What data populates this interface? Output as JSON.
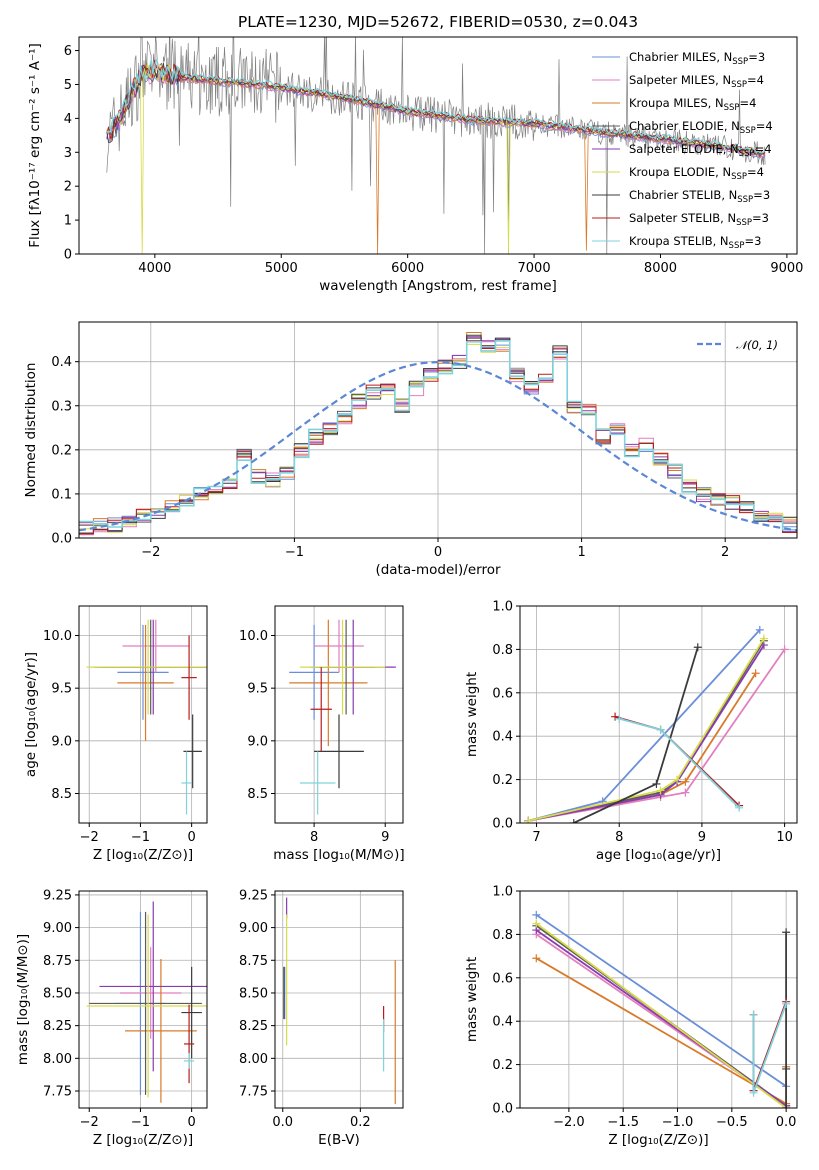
{
  "colors": {
    "Chabrier MILES": "#6a8ed8",
    "Salpeter MILES": "#e37fbf",
    "Kroupa MILES": "#d97a2b",
    "Chabrier ELODIE": "#5c5c5c",
    "Salpeter ELODIE": "#8a3bb0",
    "Kroupa ELODIE": "#d6dc4a",
    "Chabrier STELIB": "#3b3b3b",
    "Salpeter STELIB": "#b81d1d",
    "Kroupa STELIB": "#7fd3dc",
    "data": "#808080",
    "gauss": "#5b87d6"
  },
  "chart_data": [
    {
      "id": "spectrum",
      "type": "line",
      "title": "PLATE=1230, MJD=52672, FIBERID=0530, z=0.043",
      "xlabel": "wavelength [Angstrom, rest frame]",
      "ylabel": "Flux [fλ10⁻¹⁷ erg cm⁻² s⁻¹ A⁻¹]",
      "xlim": [
        3400,
        9080
      ],
      "ylim": [
        0,
        6.4
      ],
      "xticks": [
        "4000",
        "5000",
        "6000",
        "7000",
        "8000",
        "9000"
      ],
      "yticks": [
        "0",
        "1",
        "2",
        "3",
        "4",
        "5",
        "6"
      ],
      "data_trend": {
        "x": [
          3650,
          3800,
          3900,
          4000,
          4200,
          4500,
          4800,
          5000,
          5500,
          6000,
          6500,
          7000,
          7500,
          8000,
          8500,
          8800
        ],
        "y": [
          3.5,
          4.6,
          5.3,
          5.4,
          5.2,
          5.1,
          5.0,
          4.9,
          4.6,
          4.2,
          3.95,
          3.85,
          3.6,
          3.4,
          3.15,
          2.95
        ]
      },
      "legend": [
        {
          "name": "Chabrier MILES",
          "nssp": "3"
        },
        {
          "name": "Salpeter MILES",
          "nssp": "4"
        },
        {
          "name": "Kroupa MILES",
          "nssp": "4"
        },
        {
          "name": "Chabrier ELODIE",
          "nssp": "4"
        },
        {
          "name": "Salpeter ELODIE",
          "nssp": "4"
        },
        {
          "name": "Kroupa ELODIE",
          "nssp": "4"
        },
        {
          "name": "Chabrier STELIB",
          "nssp": "3"
        },
        {
          "name": "Salpeter STELIB",
          "nssp": "3"
        },
        {
          "name": "Kroupa STELIB",
          "nssp": "3"
        }
      ],
      "legend_placement": "right",
      "grid": false
    },
    {
      "id": "residuals",
      "type": "histogram",
      "xlabel": "(data-model)/error",
      "ylabel": "Normed distribution",
      "xlim": [
        -2.5,
        2.5
      ],
      "ylim": [
        0,
        0.49
      ],
      "xticks": [
        "−2",
        "−1",
        "0",
        "1",
        "2"
      ],
      "yticks": [
        "0.0",
        "0.1",
        "0.2",
        "0.3",
        "0.4"
      ],
      "bin_width": 0.1,
      "bin_start": -2.5,
      "values": [
        0.02,
        0.03,
        0.03,
        0.04,
        0.05,
        0.05,
        0.07,
        0.09,
        0.1,
        0.11,
        0.12,
        0.19,
        0.14,
        0.13,
        0.15,
        0.2,
        0.23,
        0.25,
        0.27,
        0.31,
        0.33,
        0.34,
        0.3,
        0.34,
        0.37,
        0.39,
        0.4,
        0.45,
        0.43,
        0.44,
        0.37,
        0.34,
        0.36,
        0.42,
        0.3,
        0.29,
        0.23,
        0.25,
        0.2,
        0.21,
        0.18,
        0.15,
        0.12,
        0.1,
        0.09,
        0.08,
        0.07,
        0.05,
        0.04,
        0.03
      ],
      "legend": "𝒩(0, 1)",
      "legend_placement": "top-right",
      "grid": true
    },
    {
      "id": "age-vs-Z",
      "type": "errorbar",
      "xlabel": "Z [log₁₀(Z/Z⊙)]",
      "ylabel": "age  [log₁₀(age/yr)]",
      "xlim": [
        -2.2,
        0.3
      ],
      "ylim": [
        8.22,
        10.28
      ],
      "xticks": [
        "−2",
        "−1",
        "0"
      ],
      "yticks": [
        "8.5",
        "9.0",
        "9.5",
        "10.0"
      ],
      "points": [
        {
          "series": "Chabrier MILES",
          "x": -0.95,
          "xerr": 0.5,
          "y": 9.65,
          "yerr": 0.45
        },
        {
          "series": "Salpeter MILES",
          "x": -0.7,
          "xerr": 0.65,
          "y": 9.9,
          "yerr": 0.25
        },
        {
          "series": "Kroupa MILES",
          "x": -0.9,
          "xerr": 0.55,
          "y": 9.55,
          "yerr": 0.55
        },
        {
          "series": "Chabrier ELODIE",
          "x": -0.8,
          "xerr": 1.1,
          "y": 9.7,
          "yerr": 0.45
        },
        {
          "series": "Salpeter ELODIE",
          "x": -0.75,
          "xerr": 1.05,
          "y": 9.7,
          "yerr": 0.45
        },
        {
          "series": "Kroupa ELODIE",
          "x": -0.85,
          "xerr": 1.2,
          "y": 9.7,
          "yerr": 0.45
        },
        {
          "series": "Chabrier STELIB",
          "x": 0.02,
          "xerr": 0.18,
          "y": 8.9,
          "yerr": 0.35
        },
        {
          "series": "Salpeter STELIB",
          "x": -0.05,
          "xerr": 0.15,
          "y": 9.6,
          "yerr": 0.4
        },
        {
          "series": "Kroupa STELIB",
          "x": -0.1,
          "xerr": 0.1,
          "y": 8.6,
          "yerr": 0.3
        }
      ],
      "grid": true
    },
    {
      "id": "age-vs-mass",
      "type": "errorbar",
      "xlabel": "mass [log₁₀(M/M⊙)]",
      "ylabel": "",
      "xlim": [
        7.45,
        9.25
      ],
      "ylim": [
        8.22,
        10.28
      ],
      "xticks": [
        "8",
        "9"
      ],
      "yticks": [
        "8.5",
        "9.0",
        "9.5",
        "10.0"
      ],
      "points": [
        {
          "series": "Chabrier MILES",
          "x": 8.0,
          "xerr": 0.35,
          "y": 9.65,
          "yerr": 0.45
        },
        {
          "series": "Salpeter MILES",
          "x": 8.35,
          "xerr": 0.35,
          "y": 9.9,
          "yerr": 0.25
        },
        {
          "series": "Kroupa MILES",
          "x": 8.2,
          "xerr": 0.55,
          "y": 9.55,
          "yerr": 0.6
        },
        {
          "series": "Chabrier ELODIE",
          "x": 8.45,
          "xerr": 0.4,
          "y": 9.7,
          "yerr": 0.45
        },
        {
          "series": "Salpeter ELODIE",
          "x": 8.55,
          "xerr": 0.6,
          "y": 9.7,
          "yerr": 0.45
        },
        {
          "series": "Kroupa ELODIE",
          "x": 8.4,
          "xerr": 0.6,
          "y": 9.7,
          "yerr": 0.45
        },
        {
          "series": "Chabrier STELIB",
          "x": 8.35,
          "xerr": 0.35,
          "y": 8.9,
          "yerr": 0.35
        },
        {
          "series": "Salpeter STELIB",
          "x": 8.1,
          "xerr": 0.15,
          "y": 9.3,
          "yerr": 0.4
        },
        {
          "series": "Kroupa STELIB",
          "x": 8.05,
          "xerr": 0.25,
          "y": 8.6,
          "yerr": 0.3
        }
      ],
      "grid": true
    },
    {
      "id": "mass-weight-vs-age",
      "type": "line",
      "xlabel": "age  [log₁₀(age/yr)]",
      "ylabel": "mass weight",
      "xlim": [
        6.8,
        10.15
      ],
      "ylim": [
        0,
        1.0
      ],
      "xticks": [
        "7",
        "8",
        "9",
        "10"
      ],
      "yticks": [
        "0.0",
        "0.2",
        "0.4",
        "0.6",
        "0.8",
        "1.0"
      ],
      "series": [
        {
          "name": "Chabrier MILES",
          "x": [
            6.9,
            7.8,
            9.7
          ],
          "y": [
            0.01,
            0.1,
            0.89
          ]
        },
        {
          "name": "Salpeter MILES",
          "x": [
            6.9,
            8.5,
            8.8,
            10.0
          ],
          "y": [
            0.01,
            0.12,
            0.14,
            0.8
          ]
        },
        {
          "name": "Kroupa MILES",
          "x": [
            6.9,
            8.5,
            8.8,
            9.65
          ],
          "y": [
            0.01,
            0.13,
            0.19,
            0.69
          ]
        },
        {
          "name": "Chabrier ELODIE",
          "x": [
            6.9,
            8.5,
            8.7,
            9.75
          ],
          "y": [
            0.01,
            0.14,
            0.19,
            0.84
          ]
        },
        {
          "name": "Salpeter ELODIE",
          "x": [
            6.9,
            8.5,
            8.7,
            9.75
          ],
          "y": [
            0.01,
            0.13,
            0.19,
            0.82
          ]
        },
        {
          "name": "Kroupa ELODIE",
          "x": [
            6.9,
            8.5,
            8.7,
            9.75
          ],
          "y": [
            0.01,
            0.15,
            0.2,
            0.85
          ]
        },
        {
          "name": "Chabrier STELIB",
          "x": [
            7.45,
            8.45,
            8.95
          ],
          "y": [
            0.0,
            0.18,
            0.81
          ]
        },
        {
          "name": "Salpeter STELIB",
          "x": [
            7.95,
            8.5,
            9.45
          ],
          "y": [
            0.49,
            0.43,
            0.08
          ]
        },
        {
          "name": "Kroupa STELIB",
          "x": [
            8.0,
            8.5,
            9.45
          ],
          "y": [
            0.48,
            0.43,
            0.07
          ]
        }
      ],
      "grid": true
    },
    {
      "id": "mass-vs-Z",
      "type": "errorbar",
      "xlabel": "Z [log₁₀(Z/Z⊙)]",
      "ylabel": "mass [log₁₀(M/M⊙)]",
      "xlim": [
        -2.2,
        0.3
      ],
      "ylim": [
        7.62,
        9.28
      ],
      "xticks": [
        "−2",
        "−1",
        "0"
      ],
      "yticks": [
        "7.75",
        "8.00",
        "8.25",
        "8.50",
        "8.75",
        "9.00",
        "9.25"
      ],
      "points": [
        {
          "series": "Chabrier MILES",
          "x": -1.0,
          "xerr": 0.5,
          "y": 8.42,
          "yerr": 0.7
        },
        {
          "series": "Salpeter MILES",
          "x": -0.8,
          "xerr": 0.6,
          "y": 8.5,
          "yerr": 0.35
        },
        {
          "series": "Kroupa MILES",
          "x": -0.6,
          "xerr": 0.7,
          "y": 8.21,
          "yerr": 0.55
        },
        {
          "series": "Chabrier ELODIE",
          "x": -0.9,
          "xerr": 1.1,
          "y": 8.42,
          "yerr": 0.7
        },
        {
          "series": "Salpeter ELODIE",
          "x": -0.75,
          "xerr": 1.05,
          "y": 8.55,
          "yerr": 0.65
        },
        {
          "series": "Kroupa ELODIE",
          "x": -0.85,
          "xerr": 1.2,
          "y": 8.4,
          "yerr": 0.7
        },
        {
          "series": "Chabrier STELIB",
          "x": 0.0,
          "xerr": 0.2,
          "y": 8.35,
          "yerr": 0.35
        },
        {
          "series": "Salpeter STELIB",
          "x": -0.05,
          "xerr": 0.1,
          "y": 8.11,
          "yerr": 0.3
        },
        {
          "series": "Kroupa STELIB",
          "x": -0.05,
          "xerr": 0.1,
          "y": 7.98,
          "yerr": 0.06
        }
      ],
      "grid": true
    },
    {
      "id": "mass-vs-ebv",
      "type": "errorbar",
      "xlabel": "E(B-V)",
      "ylabel": "",
      "xlim": [
        -0.02,
        0.31
      ],
      "ylim": [
        7.62,
        9.28
      ],
      "xticks": [
        "0.0",
        "0.2"
      ],
      "yticks": [
        "7.75",
        "8.00",
        "8.25",
        "8.50",
        "8.75",
        "9.00",
        "9.25"
      ],
      "points": [
        {
          "series": "Chabrier MILES",
          "x": 0.005,
          "y": 8.5,
          "yerr": 0.2
        },
        {
          "series": "Salpeter ELODIE",
          "x": 0.01,
          "y": 9.15,
          "yerr": 0.08
        },
        {
          "series": "Kroupa ELODIE",
          "x": 0.01,
          "y": 8.6,
          "yerr": 0.5
        },
        {
          "series": "Chabrier STELIB",
          "x": 0.003,
          "y": 8.5,
          "yerr": 0.2
        },
        {
          "series": "Salpeter STELIB",
          "x": 0.26,
          "y": 8.3,
          "yerr": 0.1
        },
        {
          "series": "Kroupa STELIB",
          "x": 0.26,
          "y": 8.1,
          "yerr": 0.2
        },
        {
          "series": "Kroupa MILES",
          "x": 0.29,
          "y": 8.2,
          "yerr": 0.55
        }
      ],
      "grid": true
    },
    {
      "id": "mass-weight-vs-Z",
      "type": "line",
      "xlabel": "Z [log₁₀(Z/Z⊙)]",
      "ylabel": "mass weight",
      "xlim": [
        -2.45,
        0.1
      ],
      "ylim": [
        0,
        1.0
      ],
      "xticks": [
        "−2.0",
        "−1.5",
        "−1.0",
        "−0.5",
        "0.0"
      ],
      "yticks": [
        "0.0",
        "0.2",
        "0.4",
        "0.6",
        "0.8",
        "1.0"
      ],
      "series": [
        {
          "name": "Chabrier MILES",
          "x": [
            -2.3,
            0.0
          ],
          "y": [
            0.89,
            0.1
          ]
        },
        {
          "name": "Salpeter MILES",
          "x": [
            -2.3,
            0.0
          ],
          "y": [
            0.8,
            0.01
          ]
        },
        {
          "name": "Kroupa MILES",
          "x": [
            -2.3,
            0.0,
            0.0
          ],
          "y": [
            0.69,
            0.02,
            0.19
          ]
        },
        {
          "name": "Chabrier ELODIE",
          "x": [
            -2.3,
            0.0
          ],
          "y": [
            0.84,
            0.01
          ]
        },
        {
          "name": "Salpeter ELODIE",
          "x": [
            -2.3,
            0.0
          ],
          "y": [
            0.82,
            0.01
          ]
        },
        {
          "name": "Kroupa ELODIE",
          "x": [
            -2.3,
            0.0
          ],
          "y": [
            0.85,
            0.0
          ]
        },
        {
          "name": "Chabrier STELIB",
          "x": [
            0.0,
            0.0,
            0.0
          ],
          "y": [
            0.81,
            0.18,
            0.0
          ]
        },
        {
          "name": "Salpeter STELIB",
          "x": [
            -0.3,
            -0.3,
            0.0
          ],
          "y": [
            0.43,
            0.08,
            0.49
          ]
        },
        {
          "name": "Kroupa STELIB",
          "x": [
            -0.3,
            -0.3,
            0.0
          ],
          "y": [
            0.43,
            0.07,
            0.48
          ]
        }
      ],
      "grid": true
    }
  ]
}
